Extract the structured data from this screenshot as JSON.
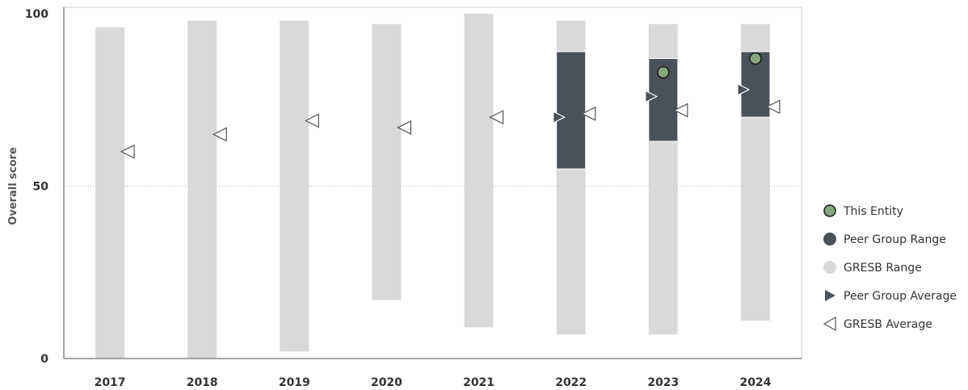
{
  "chart_data": {
    "type": "range",
    "ylabel": "Overall score",
    "ylim": [
      0,
      100
    ],
    "yticks": [
      0,
      50,
      100
    ],
    "grid": "dotted line at 50",
    "categories": [
      "2017",
      "2018",
      "2019",
      "2020",
      "2021",
      "2022",
      "2023",
      "2024"
    ],
    "series": [
      {
        "name": "GRESB Range",
        "low": [
          0,
          0,
          2,
          17,
          9,
          7,
          7,
          11
        ],
        "high": [
          96,
          98,
          98,
          97,
          100,
          98,
          97,
          97
        ]
      },
      {
        "name": "Peer Group Range",
        "low": [
          null,
          null,
          null,
          null,
          null,
          55,
          63,
          70
        ],
        "high": [
          null,
          null,
          null,
          null,
          null,
          89,
          87,
          89
        ]
      },
      {
        "name": "This Entity",
        "values": [
          null,
          null,
          null,
          null,
          null,
          null,
          83,
          87
        ]
      },
      {
        "name": "Peer Group Average",
        "values": [
          null,
          null,
          null,
          null,
          null,
          70,
          76,
          78
        ]
      },
      {
        "name": "GRESB Average",
        "values": [
          60,
          65,
          69,
          67,
          70,
          71,
          72,
          73
        ]
      }
    ],
    "legend": {
      "placement": "right",
      "items": [
        "This Entity",
        "Peer Group Range",
        "GRESB Range",
        "Peer Group Average",
        "GRESB Average"
      ]
    },
    "colors": {
      "gresb_range": "#d9d9db",
      "peer_range": "#4a5158",
      "entity": "#86a77f",
      "peer_avg": "#4a5158",
      "gresb_avg": "#ffffff",
      "grid": "#bbbbbb",
      "axis": "#888888"
    }
  }
}
